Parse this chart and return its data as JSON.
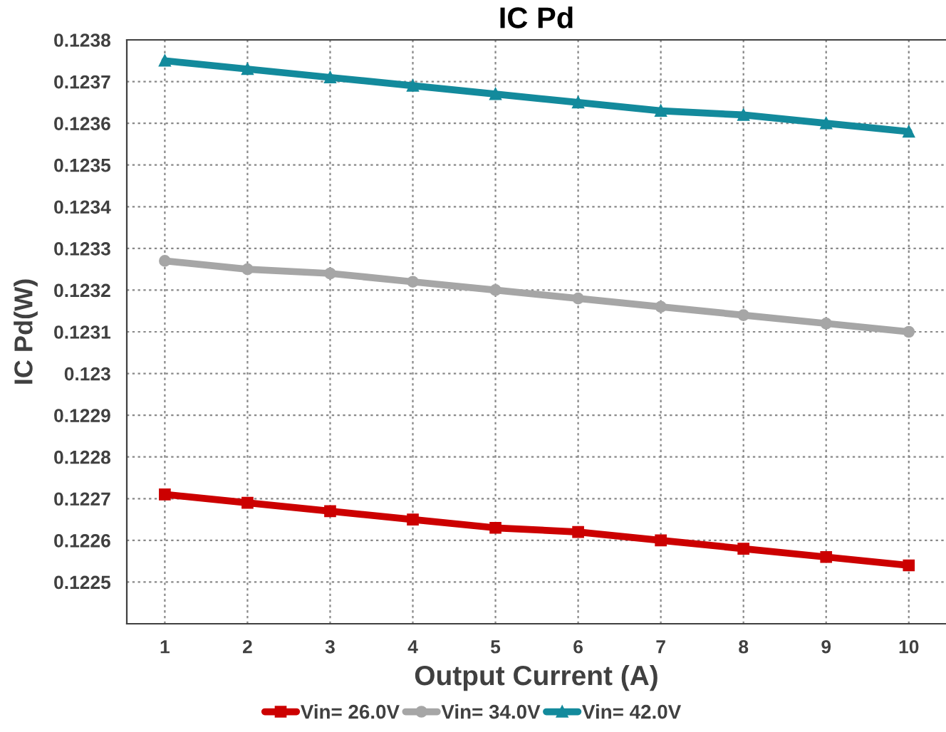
{
  "chart_data": {
    "type": "line",
    "title": "IC Pd",
    "xlabel": "Output Current (A)",
    "ylabel": "IC Pd(W)",
    "x": [
      1,
      2,
      3,
      4,
      5,
      6,
      7,
      8,
      9,
      10
    ],
    "xlim": [
      0.54,
      10.45
    ],
    "xticks": [
      1,
      2,
      3,
      4,
      5,
      6,
      7,
      8,
      9,
      10
    ],
    "ylim": [
      0.1224,
      0.1238
    ],
    "yticks": [
      {
        "value": 0.1224,
        "label": null
      },
      0.1225,
      0.1226,
      0.1227,
      0.1228,
      0.1229,
      0.123,
      0.1231,
      0.1232,
      0.1233,
      0.1234,
      0.1235,
      0.1236,
      0.1237,
      0.1238
    ],
    "grid": true,
    "legend": "bottom",
    "line_style": "solid",
    "series": [
      {
        "name": "Vin= 26.0V",
        "color": "#cc0000",
        "marker": "square",
        "values": [
          0.12271,
          0.12269,
          0.12267,
          0.12265,
          0.12263,
          0.12262,
          0.1226,
          0.12258,
          0.12256,
          0.12254
        ]
      },
      {
        "name": "Vin= 34.0V",
        "color": "#a6a6a6",
        "marker": "circle",
        "values": [
          0.12327,
          0.12325,
          0.12324,
          0.12322,
          0.1232,
          0.12318,
          0.12316,
          0.12314,
          0.12312,
          0.1231
        ]
      },
      {
        "name": "Vin= 42.0V",
        "color": "#138a9c",
        "marker": "triangle",
        "values": [
          0.12375,
          0.12373,
          0.12371,
          0.12369,
          0.12367,
          0.12365,
          0.12363,
          0.12362,
          0.1236,
          0.12358
        ]
      }
    ]
  }
}
